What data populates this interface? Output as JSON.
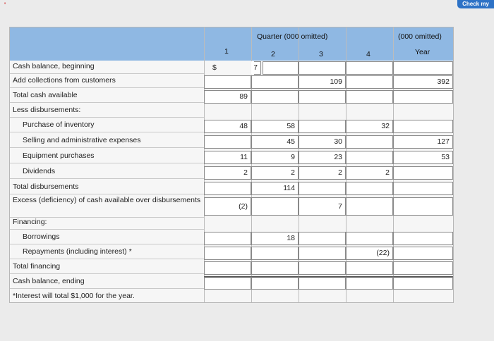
{
  "top_button": "Check my work",
  "header": {
    "quarter_title": "Quarter (000 omitted)",
    "year_title": "(000 omitted)",
    "columns": [
      "1",
      "2",
      "3",
      "4",
      "Year"
    ]
  },
  "currency_symbol": "$",
  "rows": [
    {
      "label": "Cash balance, beginning",
      "values": [
        "7",
        "",
        "",
        "",
        ""
      ]
    },
    {
      "label": "Add collections from customers",
      "values": [
        "",
        "",
        "109",
        "",
        "392"
      ]
    },
    {
      "label": "Total cash available",
      "values": [
        "89",
        "",
        "",
        "",
        ""
      ]
    },
    {
      "label": "Less disbursements:",
      "values": []
    },
    {
      "label": "Purchase of inventory",
      "values": [
        "48",
        "58",
        "",
        "32",
        ""
      ]
    },
    {
      "label": "Selling and administrative expenses",
      "values": [
        "",
        "45",
        "30",
        "",
        "127"
      ]
    },
    {
      "label": "Equipment purchases",
      "values": [
        "11",
        "9",
        "23",
        "",
        "53"
      ]
    },
    {
      "label": "Dividends",
      "values": [
        "2",
        "2",
        "2",
        "2",
        ""
      ]
    },
    {
      "label": "Total disbursements",
      "values": [
        "",
        "114",
        "",
        "",
        ""
      ]
    },
    {
      "label": "Excess (deficiency) of cash available over disbursements",
      "values": [
        "(2)",
        "",
        "7",
        "",
        ""
      ]
    },
    {
      "label": "Financing:",
      "values": []
    },
    {
      "label": "Borrowings",
      "values": [
        "",
        "18",
        "",
        "",
        ""
      ]
    },
    {
      "label": "Repayments (including interest) *",
      "values": [
        "",
        "",
        "",
        "(22)",
        ""
      ]
    },
    {
      "label": "Total financing",
      "values": [
        "",
        "",
        "",
        "",
        ""
      ]
    },
    {
      "label": "Cash balance, ending",
      "values": [
        "",
        "",
        "",
        "",
        ""
      ]
    }
  ],
  "footnote": "*Interest will total $1,000 for the year."
}
